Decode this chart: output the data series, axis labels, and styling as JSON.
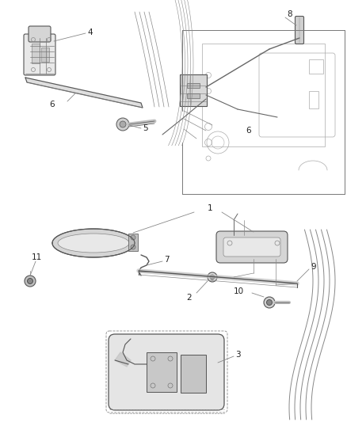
{
  "bg_color": "#ffffff",
  "line_color": "#555555",
  "fig_width": 4.38,
  "fig_height": 5.33,
  "dpi": 100,
  "label_fs": 7.5,
  "label_color": "#222222"
}
